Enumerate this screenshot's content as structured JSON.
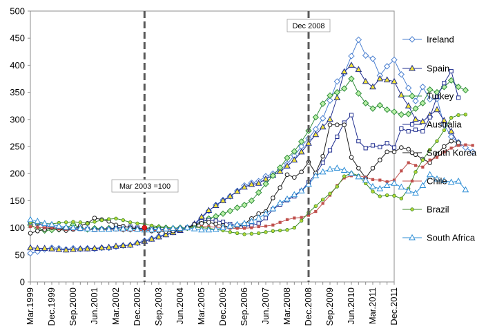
{
  "chart_data": {
    "type": "line",
    "ylim": [
      0,
      500
    ],
    "yticks": [
      0,
      50,
      100,
      150,
      200,
      250,
      300,
      350,
      400,
      450,
      500
    ],
    "x_tick_labels": [
      "Mar.1999",
      "Dec.1999",
      "Sep.2000",
      "Jun.2001",
      "Mar.2002",
      "Dec.2002",
      "Sep.2003",
      "Jun.2004",
      "Mar.2005",
      "Dec.2005",
      "Sep.2006",
      "Jun.2007",
      "Mar.2008",
      "Dec.2008",
      "Sep.2009",
      "Jun.2010",
      "Mar.2011",
      "Dec.2011"
    ],
    "x_range": [
      1999.125,
      2011.875
    ],
    "grid": false,
    "legend_position": "right",
    "annotations": [
      {
        "label": "Mar 2003 =100",
        "x": 2003.125
      },
      {
        "label": "Dec 2008",
        "x": 2008.875
      }
    ],
    "series": [
      {
        "name": "Ireland",
        "color": "#4a7fd0",
        "marker": "diamond",
        "x_start": 1999.125,
        "values": [
          53,
          56,
          60,
          63,
          62,
          60,
          62,
          61,
          62,
          61,
          63,
          63,
          65,
          67,
          68,
          72,
          76,
          80,
          84,
          88,
          92,
          97,
          100,
          106,
          118,
          131,
          142,
          151,
          158,
          168,
          178,
          183,
          186,
          195,
          200,
          207,
          218,
          233,
          250,
          265,
          282,
          302,
          335,
          370,
          385,
          417,
          447,
          418,
          412,
          381,
          398,
          410,
          383,
          358,
          334,
          360,
          337,
          338,
          290,
          268,
          258,
          248,
          240
        ]
      },
      {
        "name": "Spain",
        "color": "#1f2d8f",
        "fill": "#f5e636",
        "marker": "triangle",
        "x_start": 1999.125,
        "values": [
          63,
          62,
          62,
          61,
          60,
          59,
          60,
          61,
          61,
          62,
          63,
          64,
          66,
          67,
          68,
          72,
          75,
          79,
          83,
          87,
          91,
          95,
          100,
          107,
          120,
          132,
          141,
          150,
          158,
          167,
          175,
          180,
          182,
          190,
          197,
          204,
          214,
          225,
          240,
          256,
          272,
          286,
          300,
          340,
          388,
          400,
          392,
          370,
          360,
          375,
          373,
          370,
          345,
          325,
          300,
          296,
          308,
          318,
          298,
          278,
          255
        ]
      },
      {
        "name": "Turkey",
        "color": "#2e8b3a",
        "fill": "#b9f1a6",
        "marker": "diamond",
        "x_start": 1999.125,
        "values": [
          105,
          99,
          95,
          96,
          97,
          100,
          106,
          100,
          97,
          99,
          98,
          99,
          99,
          97,
          97,
          98,
          99,
          100,
          101,
          100,
          99,
          100,
          100,
          103,
          110,
          117,
          121,
          126,
          131,
          137,
          142,
          150,
          165,
          181,
          196,
          211,
          229,
          241,
          259,
          279,
          304,
          329,
          344,
          350,
          357,
          375,
          348,
          330,
          320,
          326,
          318,
          314,
          309,
          310,
          320,
          330,
          355,
          350,
          360,
          372,
          360,
          354
        ]
      },
      {
        "name": "Australia",
        "color": "#1f2d8f",
        "fill": "#ffffff",
        "marker": "square",
        "x_start": 1999.125,
        "values": [
          110,
          108,
          104,
          102,
          100,
          99,
          98,
          98,
          98,
          96,
          97,
          98,
          100,
          101,
          102,
          100,
          98,
          98,
          97,
          96,
          96,
          98,
          100,
          106,
          112,
          114,
          113,
          111,
          107,
          104,
          103,
          104,
          108,
          118,
          134,
          143,
          151,
          158,
          168,
          184,
          199,
          220,
          243,
          268,
          294,
          308,
          260,
          247,
          252,
          249,
          256,
          248,
          283,
          278,
          281,
          278,
          304,
          342,
          367,
          389,
          340
        ]
      },
      {
        "name": "South Korea",
        "color": "#1a1a1a",
        "fill": "#ffffff",
        "marker": "circle",
        "x_start": 1999.125,
        "values": [
          90,
          94,
          97,
          100,
          97,
          95,
          97,
          104,
          108,
          118,
          115,
          112,
          105,
          103,
          100,
          98,
          96,
          94,
          94,
          93,
          94,
          96,
          100,
          106,
          108,
          110,
          107,
          104,
          101,
          102,
          107,
          117,
          126,
          130,
          155,
          174,
          198,
          193,
          203,
          221,
          201,
          232,
          290,
          290,
          290,
          230,
          210,
          192,
          210,
          225,
          240,
          240,
          248,
          245,
          235,
          227,
          220,
          236,
          250,
          260,
          257
        ]
      },
      {
        "name": "Chile",
        "color": "#c0504d",
        "marker": "square_small",
        "x_start": 1999.125,
        "values": [
          102,
          101,
          100,
          100,
          98,
          97,
          97,
          97,
          97,
          96,
          96,
          96,
          96,
          95,
          95,
          95,
          95,
          95,
          95,
          96,
          97,
          98,
          100,
          101,
          102,
          102,
          101,
          100,
          99,
          99,
          99,
          100,
          102,
          103,
          105,
          110,
          115,
          118,
          119,
          123,
          130,
          145,
          160,
          178,
          192,
          196,
          196,
          193,
          189,
          188,
          185,
          188,
          205,
          220,
          215,
          212,
          225,
          230,
          240,
          247,
          252,
          253,
          252
        ]
      },
      {
        "name": "Brazil",
        "color": "#3c8a2a",
        "fill": "#b6d935",
        "marker": "circle_small",
        "x_start": 1999.125,
        "values": [
          110,
          109,
          108,
          107,
          109,
          110,
          111,
          110,
          108,
          111,
          114,
          116,
          117,
          114,
          110,
          108,
          107,
          104,
          102,
          101,
          99,
          98,
          100,
          101,
          100,
          99,
          97,
          95,
          92,
          90,
          88,
          89,
          90,
          92,
          94,
          95,
          96,
          100,
          113,
          128,
          140,
          152,
          163,
          176,
          195,
          201,
          196,
          182,
          167,
          158,
          160,
          159,
          154,
          172,
          203,
          225,
          244,
          260,
          280,
          303,
          308,
          309
        ]
      },
      {
        "name": "South Africa",
        "color": "#2e8ed6",
        "marker": "triangle",
        "x_start": 1999.125,
        "values": [
          115,
          112,
          108,
          106,
          103,
          101,
          100,
          99,
          98,
          97,
          97,
          97,
          98,
          98,
          98,
          97,
          96,
          96,
          97,
          98,
          99,
          99,
          100,
          98,
          96,
          96,
          97,
          100,
          103,
          106,
          108,
          112,
          118,
          126,
          135,
          146,
          153,
          161,
          168,
          180,
          196,
          203,
          208,
          210,
          206,
          200,
          194,
          188,
          176,
          172,
          178,
          182,
          175,
          168,
          164,
          178,
          198,
          190,
          187,
          184,
          186,
          170
        ]
      }
    ]
  }
}
